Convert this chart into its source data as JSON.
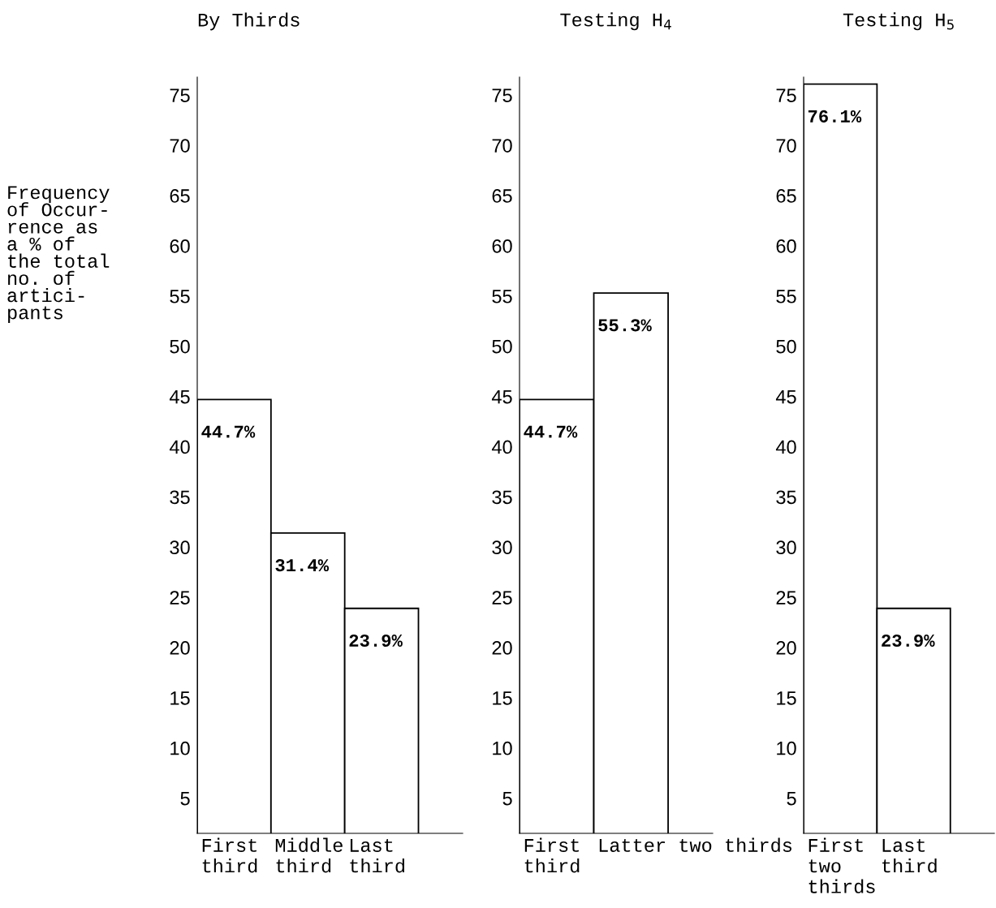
{
  "chart_data": [
    {
      "type": "bar",
      "title": "By Thirds",
      "ylabel": "Frequency\nof Occur-\nrence as\na % of\nthe total\nno. of\nartici-\npants",
      "categories": [
        "First\nthird",
        "Middle\nthird",
        "Last\nthird"
      ],
      "values": [
        44.7,
        31.4,
        23.9
      ],
      "value_labels": [
        "44.7%",
        "31.4%",
        "23.9%"
      ],
      "color": "#ffffff",
      "ylim": [
        1.5,
        76.8
      ],
      "yticks": [
        5,
        10,
        15,
        20,
        25,
        30,
        35,
        40,
        45,
        50,
        55,
        60,
        65,
        70,
        75
      ],
      "grid": false,
      "legend": false
    },
    {
      "type": "bar",
      "title": "Testing H$_{4}$",
      "categories": [
        "First\nthird",
        "Latter two thirds"
      ],
      "values": [
        44.7,
        55.3
      ],
      "value_labels": [
        "44.7%",
        "55.3%"
      ],
      "color": "#ffffff",
      "ylim": [
        1.5,
        76.8
      ],
      "yticks": [
        5,
        10,
        15,
        20,
        25,
        30,
        35,
        40,
        45,
        50,
        55,
        60,
        65,
        70,
        75
      ],
      "grid": false,
      "legend": false
    },
    {
      "type": "bar",
      "title": "Testing H$_{5}$",
      "categories": [
        "First\ntwo\nthirds",
        "Last\nthird"
      ],
      "values": [
        76.1,
        23.9
      ],
      "value_labels": [
        "76.1%",
        "23.9%"
      ],
      "color": "#ffffff",
      "ylim": [
        1.5,
        76.8
      ],
      "yticks": [
        5,
        10,
        15,
        20,
        25,
        30,
        35,
        40,
        45,
        50,
        55,
        60,
        65,
        70,
        75
      ],
      "grid": false,
      "legend": false
    }
  ]
}
